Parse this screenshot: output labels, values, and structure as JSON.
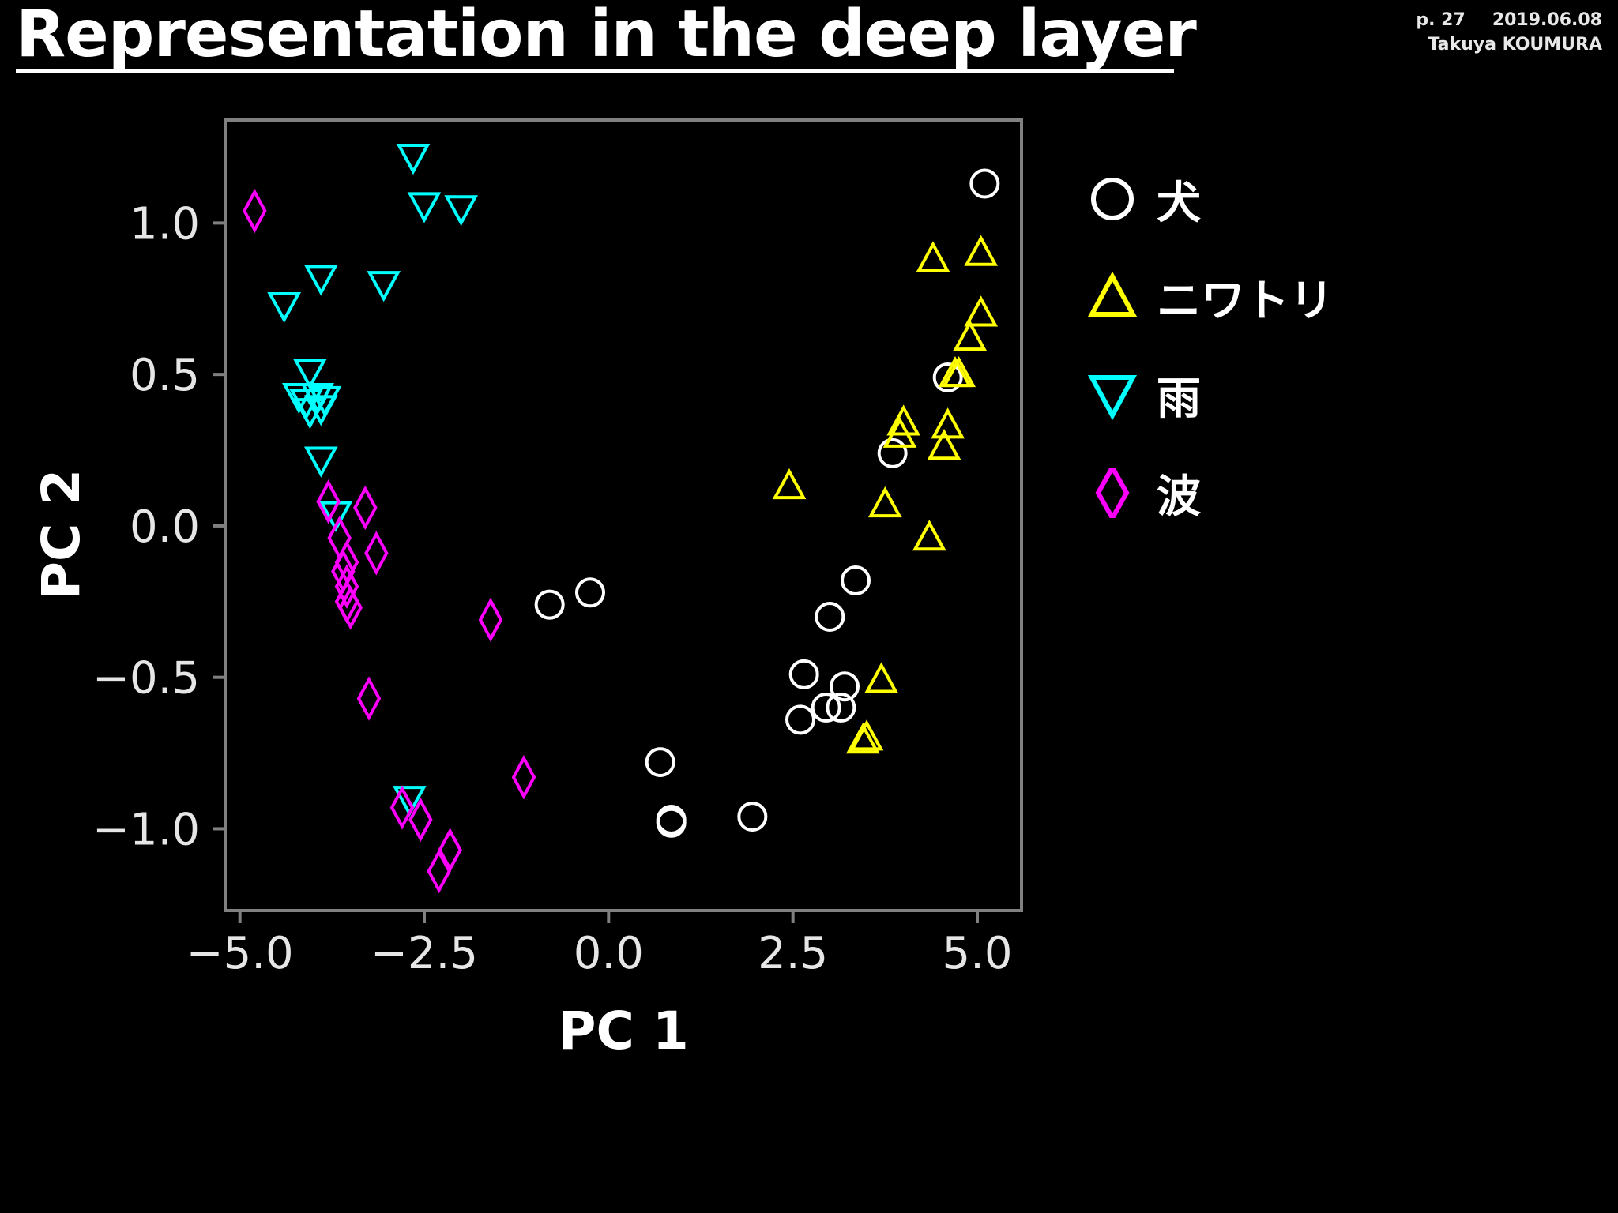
{
  "slide": {
    "title": "Representation in the deep layer",
    "page": "p. 27",
    "date": "2019.06.08",
    "author": "Takuya KOUMURA"
  },
  "chart_data": {
    "type": "scatter",
    "xlabel": "PC 1",
    "ylabel": "PC 2",
    "xlim": [
      -5.2,
      5.6
    ],
    "ylim": [
      -1.27,
      1.34
    ],
    "xticks": [
      -5.0,
      -2.5,
      0.0,
      2.5,
      5.0
    ],
    "xtick_labels": [
      "−5.0",
      "−2.5",
      "0.0",
      "2.5",
      "5.0"
    ],
    "yticks": [
      -1.0,
      -0.5,
      0.0,
      0.5,
      1.0
    ],
    "ytick_labels": [
      "−1.0",
      "−0.5",
      "0.0",
      "0.5",
      "1.0"
    ],
    "grid": false,
    "legend_position": "outside-right",
    "colors": {
      "background": "#000000",
      "axes": "#808080",
      "tick_text": "#e6e6e6"
    },
    "series": [
      {
        "name": "犬",
        "marker": "circle",
        "color": "#ffffff",
        "points": [
          [
            5.1,
            1.13
          ],
          [
            4.6,
            0.49
          ],
          [
            3.85,
            0.24
          ],
          [
            3.35,
            -0.18
          ],
          [
            3.0,
            -0.3
          ],
          [
            2.65,
            -0.49
          ],
          [
            3.2,
            -0.53
          ],
          [
            2.95,
            -0.6
          ],
          [
            3.15,
            -0.6
          ],
          [
            2.6,
            -0.64
          ],
          [
            -0.8,
            -0.26
          ],
          [
            -0.25,
            -0.22
          ],
          [
            0.7,
            -0.78
          ],
          [
            0.85,
            -0.97
          ],
          [
            0.85,
            -0.98
          ],
          [
            1.95,
            -0.96
          ]
        ]
      },
      {
        "name": "ニワトリ",
        "marker": "triangle-up",
        "color": "#ffff00",
        "points": [
          [
            4.4,
            0.88
          ],
          [
            5.05,
            0.9
          ],
          [
            5.05,
            0.7
          ],
          [
            4.9,
            0.62
          ],
          [
            4.75,
            0.5
          ],
          [
            4.7,
            0.5
          ],
          [
            4.0,
            0.34
          ],
          [
            3.95,
            0.3
          ],
          [
            4.6,
            0.33
          ],
          [
            4.55,
            0.26
          ],
          [
            2.45,
            0.13
          ],
          [
            3.75,
            0.07
          ],
          [
            4.35,
            -0.04
          ],
          [
            3.7,
            -0.51
          ],
          [
            3.5,
            -0.7
          ],
          [
            3.45,
            -0.71
          ]
        ]
      },
      {
        "name": "雨",
        "marker": "triangle-down",
        "color": "#00ffff",
        "points": [
          [
            -2.65,
            1.22
          ],
          [
            -2.5,
            1.06
          ],
          [
            -2.0,
            1.05
          ],
          [
            -3.9,
            0.82
          ],
          [
            -3.05,
            0.8
          ],
          [
            -4.4,
            0.73
          ],
          [
            -4.05,
            0.51
          ],
          [
            -4.2,
            0.43
          ],
          [
            -4.1,
            0.41
          ],
          [
            -3.95,
            0.43
          ],
          [
            -3.85,
            0.42
          ],
          [
            -4.05,
            0.38
          ],
          [
            -3.9,
            0.39
          ],
          [
            -3.9,
            0.22
          ],
          [
            -3.7,
            0.04
          ],
          [
            -2.7,
            -0.9
          ]
        ]
      },
      {
        "name": "波",
        "marker": "diamond",
        "color": "#ff00ff",
        "points": [
          [
            -4.8,
            1.04
          ],
          [
            -3.8,
            0.08
          ],
          [
            -3.3,
            0.06
          ],
          [
            -3.65,
            -0.04
          ],
          [
            -3.15,
            -0.09
          ],
          [
            -3.55,
            -0.12
          ],
          [
            -3.6,
            -0.15
          ],
          [
            -3.55,
            -0.2
          ],
          [
            -3.55,
            -0.25
          ],
          [
            -3.5,
            -0.27
          ],
          [
            -1.6,
            -0.31
          ],
          [
            -3.25,
            -0.57
          ],
          [
            -1.15,
            -0.83
          ],
          [
            -2.8,
            -0.93
          ],
          [
            -2.55,
            -0.97
          ],
          [
            -2.15,
            -1.07
          ],
          [
            -2.3,
            -1.14
          ]
        ]
      }
    ]
  }
}
